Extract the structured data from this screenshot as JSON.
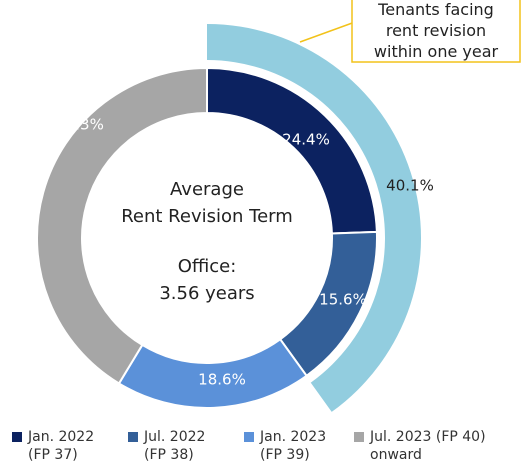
{
  "chart_data": {
    "type": "donut",
    "categories": [
      "Jan. 2022 (FP 37)",
      "Jul. 2022 (FP 38)",
      "Jan. 2023 (FP 39)",
      "Jul. 2023 (FP 40) onward"
    ],
    "values": [
      24.4,
      15.6,
      18.6,
      41.3
    ],
    "value_labels": [
      "24.4%",
      "15.6%",
      "18.6%",
      "41.3%"
    ],
    "colors": [
      "#0c2260",
      "#335f98",
      "#5b91d9",
      "#a6a6a6"
    ],
    "outer_ring": {
      "value": 40.1,
      "value_label": "40.1%",
      "color": "#92cddf",
      "annotation": "Tenants facing rent revision within one year"
    },
    "center_label": [
      "Average",
      "Rent Revision Term"
    ],
    "center_value": [
      "Office:",
      "3.56 years"
    ]
  }
}
